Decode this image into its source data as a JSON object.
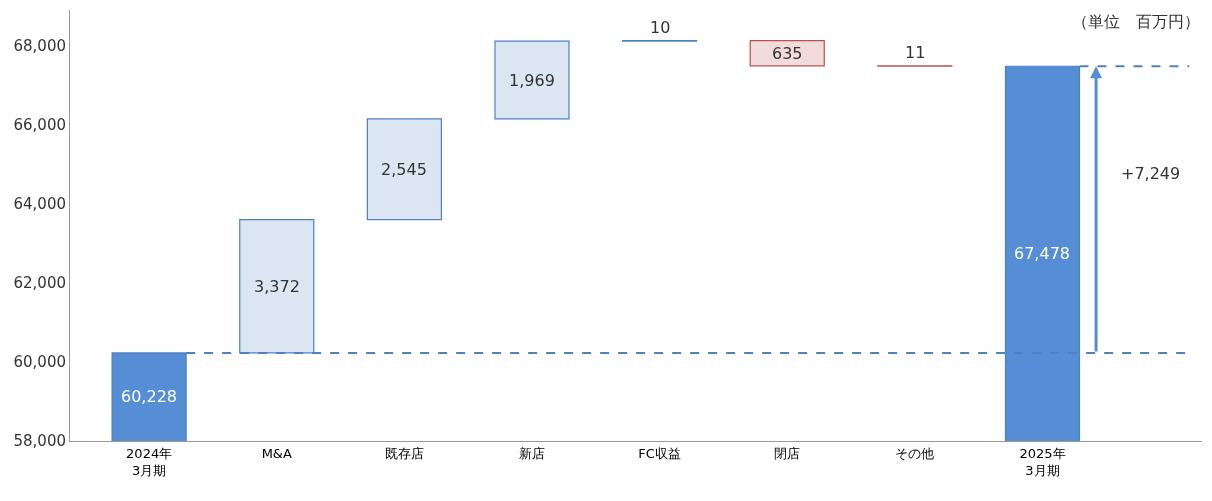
{
  "chart_data": {
    "type": "bar",
    "categories": [
      "2024年\n3月期",
      "M&A",
      "既存店",
      "新店",
      "FC収益",
      "閉店",
      "その他",
      "2025年\n3月期"
    ],
    "values": [
      60228,
      3372,
      2545,
      1969,
      10,
      -635,
      -11,
      67478
    ],
    "base": [
      0,
      60228,
      63600,
      66145,
      68114,
      68124,
      67489,
      0
    ],
    "colors": [
      "#558ed5",
      "#dce6f2",
      "#dce6f2",
      "#dce6f2",
      "#dce6f2",
      "#f2dcdb",
      "#f2dcdb",
      "#558ed5"
    ],
    "value_labels": [
      "60,228",
      "3,372",
      "2,545",
      "1,969",
      "10",
      "635",
      "11",
      "67,478"
    ],
    "ylim": [
      58000,
      68900
    ],
    "yticks": [
      {
        "value": 58000,
        "label": "58,000"
      },
      {
        "value": 60000,
        "label": "60,000"
      },
      {
        "value": 62000,
        "label": "62,000"
      },
      {
        "value": 64000,
        "label": "64,000"
      },
      {
        "value": 66000,
        "label": "66,000"
      },
      {
        "value": 68000,
        "label": "68,000"
      }
    ],
    "ref_lines": [
      {
        "axis": "y",
        "value": 60228,
        "color": "#4f81bd",
        "line_style": "dashed"
      },
      {
        "axis": "y",
        "value": 67478,
        "color": "#4f81bd",
        "line_style": "dashed"
      }
    ],
    "annotations": [
      "+7,249",
      "（単位　百万円）"
    ],
    "legend": false
  }
}
